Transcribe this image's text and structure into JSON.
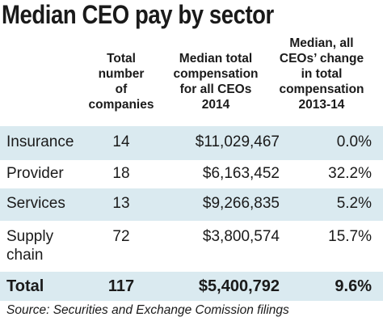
{
  "title": "Median CEO pay by sector",
  "chart_data": {
    "type": "table",
    "title": "Median CEO pay by sector",
    "columns": [
      "",
      "Total number of companies",
      "Median total compensation for all CEOs 2014",
      "Median, all CEOs' change in total compensation 2013-14"
    ],
    "rows": [
      {
        "sector": "Insurance",
        "count": "14",
        "compensation": "$11,029,467",
        "change": "0.0%"
      },
      {
        "sector": "Provider",
        "count": "18",
        "compensation": "$6,163,452",
        "change": "32.2%"
      },
      {
        "sector": "Services",
        "count": "13",
        "compensation": "$9,266,835",
        "change": "5.2%"
      },
      {
        "sector_line1": "Supply",
        "sector_line2": "chain",
        "count": "72",
        "compensation": "$3,800,574",
        "change": "15.7%"
      }
    ],
    "total": {
      "label": "Total",
      "count": "117",
      "compensation": "$5,400,792",
      "change": "9.6%"
    },
    "source": "Source: Securities and Exchange Comission filings",
    "shaded_color": "#daeaf0"
  },
  "headers": {
    "total": [
      "Total",
      "number",
      "of",
      "companies"
    ],
    "median": [
      "Median total",
      "compensation",
      "for all CEOs",
      "2014"
    ],
    "change": [
      "Median, all",
      "CEOs’ change",
      "in total",
      "compensation",
      "2013-14"
    ]
  }
}
